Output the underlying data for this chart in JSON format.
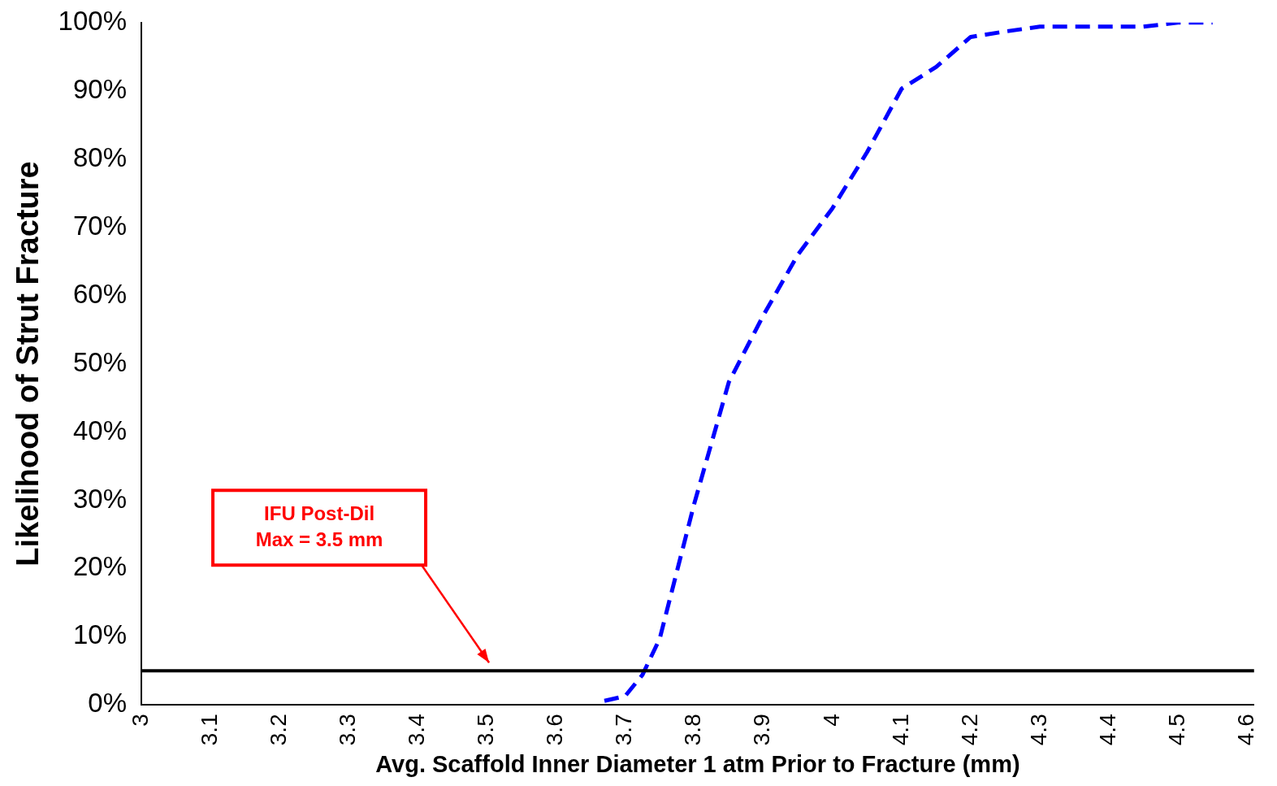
{
  "chart_data": {
    "type": "line",
    "xlabel": "Avg. Scaffold Inner Diameter 1 atm Prior to Fracture (mm)",
    "ylabel": "Likelihood of Strut Fracture",
    "x": [
      3.67,
      3.7,
      3.725,
      3.75,
      3.8,
      3.85,
      3.9,
      3.95,
      4.0,
      4.05,
      4.1,
      4.15,
      4.2,
      4.25,
      4.3,
      4.35,
      4.4,
      4.45,
      4.5,
      4.55
    ],
    "series": [
      {
        "color": "#0000ff",
        "values": [
          0.6,
          1.3,
          4.4,
          9.7,
          29.5,
          47.3,
          57.1,
          66,
          72.8,
          81,
          90.3,
          93.5,
          97.9,
          98.7,
          99.4,
          99.4,
          99.4,
          99.4,
          100,
          100
        ]
      }
    ],
    "xlim": [
      3,
      4.61
    ],
    "xticks": [
      3,
      3.1,
      3.2,
      3.3,
      3.4,
      3.5,
      3.6,
      3.7,
      3.8,
      3.9,
      4,
      4.1,
      4.2,
      4.3,
      4.4,
      4.5,
      4.6
    ],
    "ylim": [
      0,
      100
    ],
    "yticks": [
      {
        "value": 0,
        "label": "0%"
      },
      {
        "value": 10,
        "label": "10%"
      },
      {
        "value": 20,
        "label": "20%"
      },
      {
        "value": 30,
        "label": "30%"
      },
      {
        "value": 40,
        "label": "40%"
      },
      {
        "value": 50,
        "label": "50%"
      },
      {
        "value": 60,
        "label": "60%"
      },
      {
        "value": 70,
        "label": "70%"
      },
      {
        "value": 80,
        "label": "80%"
      },
      {
        "value": 90,
        "label": "90%"
      },
      {
        "value": 100,
        "label": "100%"
      }
    ],
    "grid": false,
    "legend": false,
    "marker": "none",
    "line_style": "dashed",
    "ref_lines": [
      {
        "axis": "y",
        "value": 5,
        "color": "#000000"
      }
    ],
    "annotations": [
      "IFU Post-Dil\nMax = 3.5 mm"
    ]
  }
}
